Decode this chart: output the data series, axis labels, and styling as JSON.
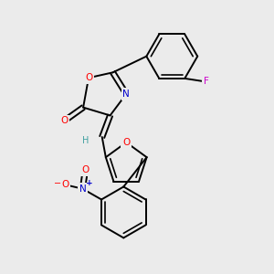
{
  "bg_color": "#ebebeb",
  "bond_color": "#000000",
  "atom_colors": {
    "O": "#ff0000",
    "N": "#0000cd",
    "F": "#cc00cc",
    "H": "#40a0a0",
    "C": "#000000"
  },
  "figsize": [
    3.0,
    3.0
  ],
  "dpi": 100
}
